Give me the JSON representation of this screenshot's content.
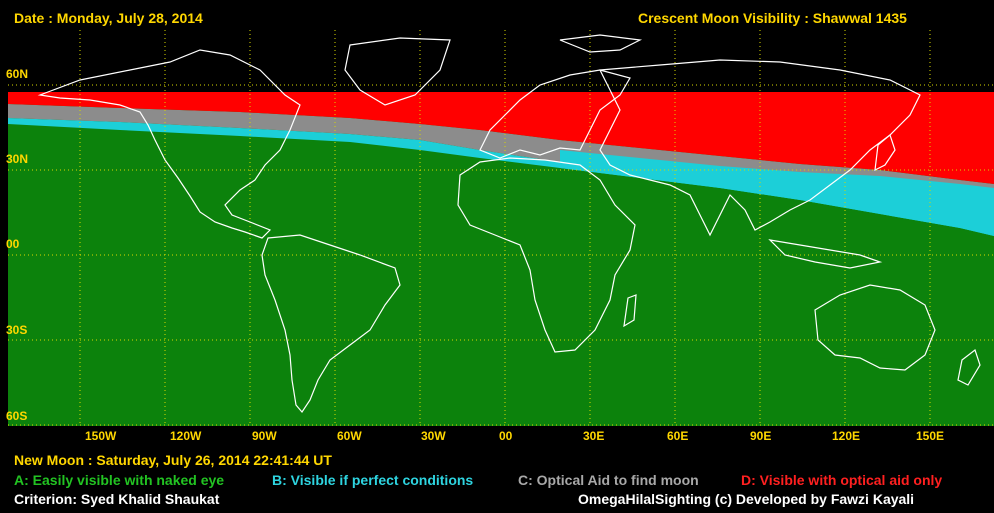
{
  "header": {
    "date_label": "Date : Monday, July 28, 2014",
    "title": "Crescent Moon Visibility : Shawwal  1435"
  },
  "footer": {
    "new_moon": "New Moon : Saturday, July 26, 2014  22:41:44  UT",
    "criterion": "Criterion: Syed Khalid Shaukat",
    "credit": "OmegaHilalSighting  (c)  Developed by Fawzi Kayali"
  },
  "legend": [
    {
      "key": "A",
      "label": "A: Easily visible with naked eye",
      "color": "#0c820c"
    },
    {
      "key": "B",
      "label": "B: Visible if perfect conditions",
      "color": "#1ccfd8"
    },
    {
      "key": "C",
      "label": "C: Optical Aid to find moon",
      "color": "#8c8c8c"
    },
    {
      "key": "D",
      "label": "D: Visible with optical aid only",
      "color": "#ff0000"
    }
  ],
  "lat_labels": [
    "60N",
    "30N",
    "00",
    "30S",
    "60S"
  ],
  "lon_labels": [
    "150W",
    "120W",
    "90W",
    "60W",
    "30W",
    "00",
    "30E",
    "60E",
    "90E",
    "120E",
    "150E"
  ],
  "colors": {
    "background": "#000000",
    "grid": "#d8d800",
    "label": "#ffd700",
    "coast": "#ffffff"
  }
}
